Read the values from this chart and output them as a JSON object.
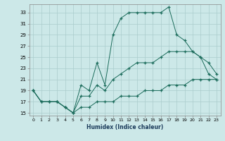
{
  "title": "",
  "xlabel": "Humidex (Indice chaleur)",
  "bg_color": "#cce8e8",
  "grid_color": "#aacccc",
  "line_color": "#1a6b5a",
  "xlim": [
    -0.5,
    23.5
  ],
  "ylim": [
    14.5,
    34.5
  ],
  "yticks": [
    15,
    17,
    19,
    21,
    23,
    25,
    27,
    29,
    31,
    33
  ],
  "xticks": [
    0,
    1,
    2,
    3,
    4,
    5,
    6,
    7,
    8,
    9,
    10,
    11,
    12,
    13,
    14,
    15,
    16,
    17,
    18,
    19,
    20,
    21,
    22,
    23
  ],
  "series": [
    {
      "x": [
        0,
        1,
        2,
        3,
        4,
        5,
        6,
        7,
        8,
        9,
        10,
        11,
        12,
        13,
        14,
        15,
        16,
        17,
        18,
        19,
        20,
        21,
        22,
        23
      ],
      "y": [
        19,
        17,
        17,
        17,
        16,
        15,
        20,
        19,
        24,
        20,
        29,
        32,
        33,
        33,
        33,
        33,
        33,
        34,
        29,
        28,
        26,
        25,
        22,
        21
      ]
    },
    {
      "x": [
        0,
        1,
        2,
        3,
        4,
        5,
        6,
        7,
        8,
        9,
        10,
        11,
        12,
        13,
        14,
        15,
        16,
        17,
        18,
        19,
        20,
        21,
        22,
        23
      ],
      "y": [
        19,
        17,
        17,
        17,
        16,
        15,
        18,
        18,
        20,
        19,
        21,
        22,
        23,
        24,
        24,
        24,
        25,
        26,
        26,
        26,
        26,
        25,
        24,
        22
      ]
    },
    {
      "x": [
        0,
        1,
        2,
        3,
        4,
        5,
        6,
        7,
        8,
        9,
        10,
        11,
        12,
        13,
        14,
        15,
        16,
        17,
        18,
        19,
        20,
        21,
        22,
        23
      ],
      "y": [
        19,
        17,
        17,
        17,
        16,
        15,
        16,
        16,
        17,
        17,
        17,
        18,
        18,
        18,
        19,
        19,
        19,
        20,
        20,
        20,
        21,
        21,
        21,
        21
      ]
    }
  ]
}
